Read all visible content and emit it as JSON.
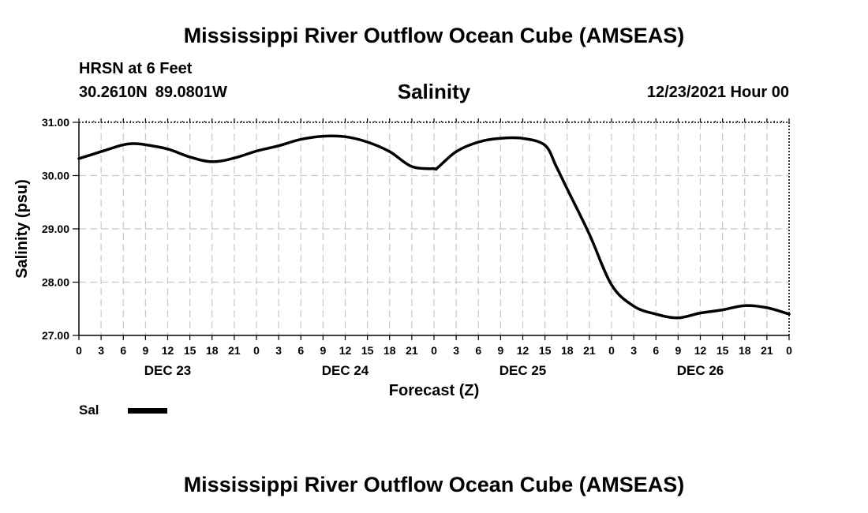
{
  "header": {
    "title": "Mississippi River Outflow Ocean Cube (AMSEAS)",
    "footer_title": "Mississippi River Outflow Ocean Cube (AMSEAS)",
    "station": "HRSN at 6 Feet",
    "lat": "30.2610N",
    "lon": "89.0801W",
    "datetime": "12/23/2021 Hour 00"
  },
  "chart_data": {
    "type": "line",
    "title": "Salinity",
    "xlabel": "Forecast (Z)",
    "ylabel": "Salinity (psu)",
    "ylim": [
      27.0,
      31.0
    ],
    "yticks": [
      "27.00",
      "28.00",
      "29.00",
      "30.00",
      "31.00"
    ],
    "xlim_hours": [
      0,
      96
    ],
    "xtick_step_hours": 3,
    "xtick_labels": [
      "0",
      "3",
      "6",
      "9",
      "12",
      "15",
      "18",
      "21",
      "0",
      "3",
      "6",
      "9",
      "12",
      "15",
      "18",
      "21",
      "0",
      "3",
      "6",
      "9",
      "12",
      "15",
      "18",
      "21",
      "0",
      "3",
      "6",
      "9",
      "12",
      "15",
      "18",
      "21",
      "0"
    ],
    "day_labels": [
      {
        "hour": 12,
        "label": "DEC 23"
      },
      {
        "hour": 36,
        "label": "DEC 24"
      },
      {
        "hour": 60,
        "label": "DEC 25"
      },
      {
        "hour": 84,
        "label": "DEC 26"
      }
    ],
    "grid": true,
    "series": [
      {
        "name": "Sal",
        "color": "#000000",
        "x": [
          0,
          3,
          6,
          7.5,
          9,
          12,
          15,
          18,
          21,
          24,
          27,
          30,
          33,
          36,
          39,
          42,
          45,
          48,
          48.5,
          51,
          54,
          57,
          60,
          63,
          64.5,
          66,
          69,
          72,
          75,
          78,
          81,
          84,
          87,
          90,
          93,
          96
        ],
        "values": [
          30.32,
          30.45,
          30.58,
          30.6,
          30.58,
          30.5,
          30.35,
          30.26,
          30.33,
          30.46,
          30.56,
          30.68,
          30.74,
          30.73,
          30.63,
          30.45,
          30.17,
          30.13,
          30.15,
          30.45,
          30.63,
          30.7,
          30.7,
          30.57,
          30.18,
          29.75,
          28.9,
          27.95,
          27.55,
          27.4,
          27.33,
          27.42,
          27.48,
          27.56,
          27.52,
          27.4
        ]
      }
    ],
    "legend": {
      "entries": [
        "Sal"
      ],
      "position": "bottom-left"
    }
  }
}
